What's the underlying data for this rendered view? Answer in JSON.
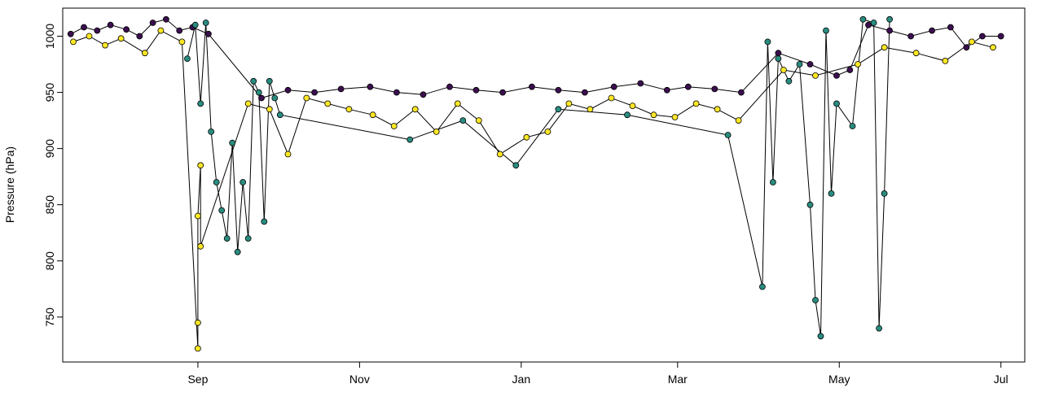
{
  "chart_data": {
    "type": "scatter",
    "title": "",
    "xlabel": "",
    "ylabel": "Pressure (hPa)",
    "x_axis_type": "date",
    "xlim": [
      "2018-07-12",
      "2019-07-10"
    ],
    "ylim": [
      710,
      1025
    ],
    "x_ticks": [
      {
        "date": "2018-09-01",
        "label": "Sep"
      },
      {
        "date": "2018-11-01",
        "label": "Nov"
      },
      {
        "date": "2019-01-01",
        "label": "Jan"
      },
      {
        "date": "2019-03-01",
        "label": "Mar"
      },
      {
        "date": "2019-05-01",
        "label": "May"
      },
      {
        "date": "2019-07-01",
        "label": "Jul"
      }
    ],
    "y_ticks": [
      750,
      800,
      850,
      900,
      950,
      1000
    ],
    "grid": false,
    "legend": "none",
    "connector_line_color": "#000000",
    "series": [
      {
        "color": "#3b0f4f",
        "x": [
          "2018-07-15",
          "2018-07-20",
          "2018-07-25",
          "2018-07-30",
          "2018-08-05",
          "2018-08-10",
          "2018-08-15",
          "2018-08-20",
          "2018-08-25",
          "2018-08-30",
          "2018-09-05",
          "2018-09-25",
          "2018-10-05",
          "2018-10-15",
          "2018-10-25",
          "2018-11-05",
          "2018-11-15",
          "2018-11-25",
          "2018-12-05",
          "2018-12-15",
          "2018-12-25",
          "2019-01-05",
          "2019-01-15",
          "2019-01-25",
          "2019-02-05",
          "2019-02-15",
          "2019-02-25",
          "2019-03-05",
          "2019-03-15",
          "2019-03-25",
          "2019-04-08",
          "2019-04-20",
          "2019-04-30",
          "2019-05-05",
          "2019-05-12",
          "2019-05-20",
          "2019-05-28",
          "2019-06-05",
          "2019-06-12",
          "2019-06-18",
          "2019-06-24",
          "2019-07-01"
        ],
        "y": [
          1002,
          1008,
          1005,
          1010,
          1006,
          1000,
          1012,
          1015,
          1005,
          1008,
          1002,
          945,
          952,
          950,
          953,
          955,
          950,
          948,
          955,
          952,
          950,
          955,
          952,
          950,
          955,
          958,
          952,
          955,
          953,
          950,
          985,
          975,
          965,
          970,
          1010,
          1005,
          1000,
          1005,
          1008,
          990,
          1000,
          1000
        ]
      },
      {
        "color": "#fde725",
        "x": [
          "2018-07-16",
          "2018-07-22",
          "2018-07-28",
          "2018-08-03",
          "2018-08-12",
          "2018-08-18",
          "2018-08-26",
          "2018-09-01",
          "2018-09-01",
          "2018-09-01",
          "2018-09-02",
          "2018-09-02",
          "2018-09-20",
          "2018-09-28",
          "2018-10-05",
          "2018-10-12",
          "2018-10-20",
          "2018-10-28",
          "2018-11-06",
          "2018-11-14",
          "2018-11-22",
          "2018-11-30",
          "2018-12-08",
          "2018-12-16",
          "2018-12-24",
          "2019-01-03",
          "2019-01-11",
          "2019-01-19",
          "2019-01-27",
          "2019-02-04",
          "2019-02-12",
          "2019-02-20",
          "2019-02-28",
          "2019-03-08",
          "2019-03-16",
          "2019-03-24",
          "2019-04-10",
          "2019-04-22",
          "2019-05-08",
          "2019-05-18",
          "2019-05-30",
          "2019-06-10",
          "2019-06-20",
          "2019-06-28"
        ],
        "y": [
          995,
          1000,
          992,
          998,
          985,
          1005,
          995,
          722,
          745,
          840,
          885,
          813,
          940,
          935,
          895,
          945,
          940,
          935,
          930,
          920,
          935,
          915,
          940,
          925,
          895,
          910,
          915,
          940,
          935,
          945,
          938,
          930,
          928,
          940,
          935,
          925,
          970,
          965,
          975,
          990,
          985,
          978,
          995,
          990
        ]
      },
      {
        "color": "#2a8c80",
        "x": [
          "2018-08-28",
          "2018-08-31",
          "2018-09-02",
          "2018-09-04",
          "2018-09-06",
          "2018-09-08",
          "2018-09-10",
          "2018-09-12",
          "2018-09-14",
          "2018-09-16",
          "2018-09-18",
          "2018-09-20",
          "2018-09-22",
          "2018-09-24",
          "2018-09-26",
          "2018-09-28",
          "2018-09-30",
          "2018-10-02",
          "2018-11-20",
          "2018-12-10",
          "2018-12-30",
          "2019-01-15",
          "2019-02-10",
          "2019-03-20",
          "2019-04-02",
          "2019-04-04",
          "2019-04-06",
          "2019-04-08",
          "2019-04-12",
          "2019-04-16",
          "2019-04-20",
          "2019-04-22",
          "2019-04-24",
          "2019-04-26",
          "2019-04-28",
          "2019-04-30",
          "2019-05-06",
          "2019-05-10",
          "2019-05-14",
          "2019-05-16",
          "2019-05-18",
          "2019-05-20"
        ],
        "y": [
          980,
          1010,
          940,
          1012,
          915,
          870,
          845,
          820,
          905,
          808,
          870,
          820,
          960,
          950,
          835,
          960,
          945,
          930,
          908,
          925,
          885,
          935,
          930,
          912,
          777,
          995,
          870,
          980,
          960,
          975,
          850,
          765,
          733,
          1005,
          860,
          940,
          920,
          1015,
          1012,
          740,
          860,
          1015
        ]
      }
    ]
  }
}
